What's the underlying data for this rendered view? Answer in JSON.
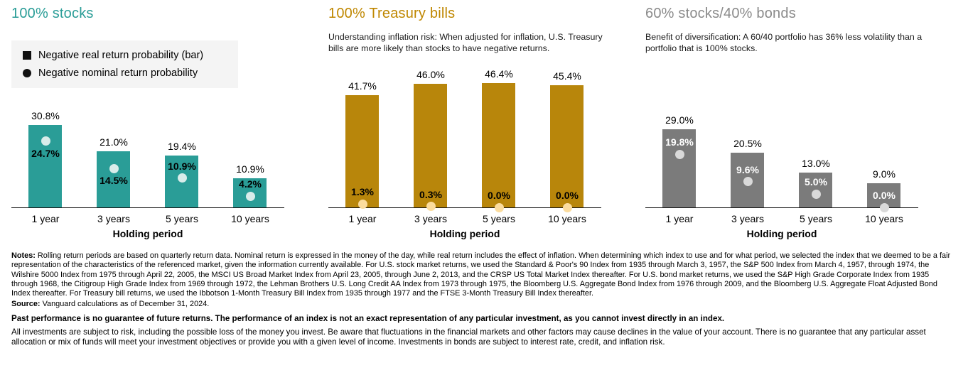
{
  "legend": {
    "items": [
      {
        "marker": "square",
        "label": "Negative real return probability (bar)"
      },
      {
        "marker": "circle",
        "label": "Negative nominal return probability"
      }
    ]
  },
  "chart_data": [
    {
      "type": "bar",
      "title": "100% stocks",
      "subtitle": "",
      "has_legend": true,
      "categories": [
        "1 year",
        "3 years",
        "5 years",
        "10 years"
      ],
      "series": [
        {
          "name": "Negative real return probability (bar)",
          "values": [
            30.8,
            21.0,
            19.4,
            10.9
          ]
        },
        {
          "name": "Negative nominal return probability",
          "values": [
            24.7,
            14.5,
            10.9,
            4.2
          ]
        }
      ],
      "xlabel": "Holding period",
      "ylim": [
        0,
        50
      ],
      "grid": false,
      "colors": {
        "title": "#2a9d97",
        "bar": "#2a9d97",
        "dot": "#d9ecea",
        "dot_label": "#000000"
      },
      "dot_label_side": [
        "below",
        "below",
        "above",
        "above"
      ]
    },
    {
      "type": "bar",
      "title": "100% Treasury bills",
      "subtitle": "Understanding inflation risk: When adjusted for inflation, U.S. Treasury bills are more likely than stocks to have negative returns.",
      "has_legend": false,
      "categories": [
        "1 year",
        "3 years",
        "5 years",
        "10 years"
      ],
      "series": [
        {
          "name": "Negative real return probability (bar)",
          "values": [
            41.7,
            46.0,
            46.4,
            45.4
          ]
        },
        {
          "name": "Negative nominal return probability",
          "values": [
            1.3,
            0.3,
            0.0,
            0.0
          ]
        }
      ],
      "xlabel": "Holding period",
      "ylim": [
        0,
        50
      ],
      "grid": false,
      "colors": {
        "title": "#bf8700",
        "bar": "#b8860b",
        "dot": "#fbdc9e",
        "dot_label": "#000000"
      },
      "dot_label_side": [
        "above",
        "above",
        "above",
        "above"
      ]
    },
    {
      "type": "bar",
      "title": "60% stocks/40% bonds",
      "subtitle": "Benefit of diversification: A 60/40 portfolio has 36% less volatility than a portfolio that is 100% stocks.",
      "has_legend": false,
      "categories": [
        "1 year",
        "3 years",
        "5 years",
        "10 years"
      ],
      "series": [
        {
          "name": "Negative real return probability (bar)",
          "values": [
            29.0,
            20.5,
            13.0,
            9.0
          ]
        },
        {
          "name": "Negative nominal return probability",
          "values": [
            19.8,
            9.6,
            5.0,
            0.0
          ]
        }
      ],
      "xlabel": "Holding period",
      "ylim": [
        0,
        50
      ],
      "grid": false,
      "colors": {
        "title": "#8a8a8a",
        "bar": "#7b7b7b",
        "dot": "#d9d9d9",
        "dot_label": "#ffffff"
      },
      "dot_label_side": [
        "above",
        "above",
        "above",
        "above"
      ]
    }
  ],
  "footer": {
    "notes_label": "Notes:",
    "notes_text": "Rolling return periods are based on quarterly return data. Nominal return is expressed in the money of the day, while real return includes the effect of inflation. When determining which index to use and for what period, we selected the index that we deemed to be a fair representation of the characteristics of the referenced market, given the information currently available. For U.S. stock market returns, we used the Standard & Poor's 90 Index from 1935 through March 3, 1957, the S&P 500 Index from March 4, 1957, through 1974, the Wilshire 5000 Index from 1975 through April 22, 2005, the MSCI US Broad Market Index from April 23, 2005, through June 2, 2013, and the CRSP US Total Market Index thereafter. For U.S. bond market returns, we used the S&P High Grade Corporate Index from 1935 through 1968, the Citigroup High Grade Index from 1969 through 1972, the Lehman Brothers U.S. Long Credit AA Index from 1973 through 1975, the Bloomberg U.S. Aggregate Bond Index from 1976 through 2009, and the Bloomberg U.S. Aggregate Float Adjusted Bond Index thereafter. For Treasury bill returns, we used the Ibbotson 1-Month Treasury Bill Index from 1935 through 1977 and the FTSE 3-Month Treasury Bill Index thereafter.",
    "source_label": "Source:",
    "source_text": "Vanguard calculations as of December 31, 2024.",
    "disclaimer_bold": "Past performance is no guarantee of future returns. The performance of an index is not an exact representation of any particular investment, as you cannot invest directly in an index.",
    "risk_text": "All investments are subject to risk, including the possible loss of the money you invest. Be aware that fluctuations in the financial markets and other factors may cause declines in the value of your account. There is no guarantee that any particular asset allocation or mix of funds will meet your investment objectives or provide you with a given level of income. Investments in bonds are subject to interest rate, credit, and inflation risk."
  }
}
